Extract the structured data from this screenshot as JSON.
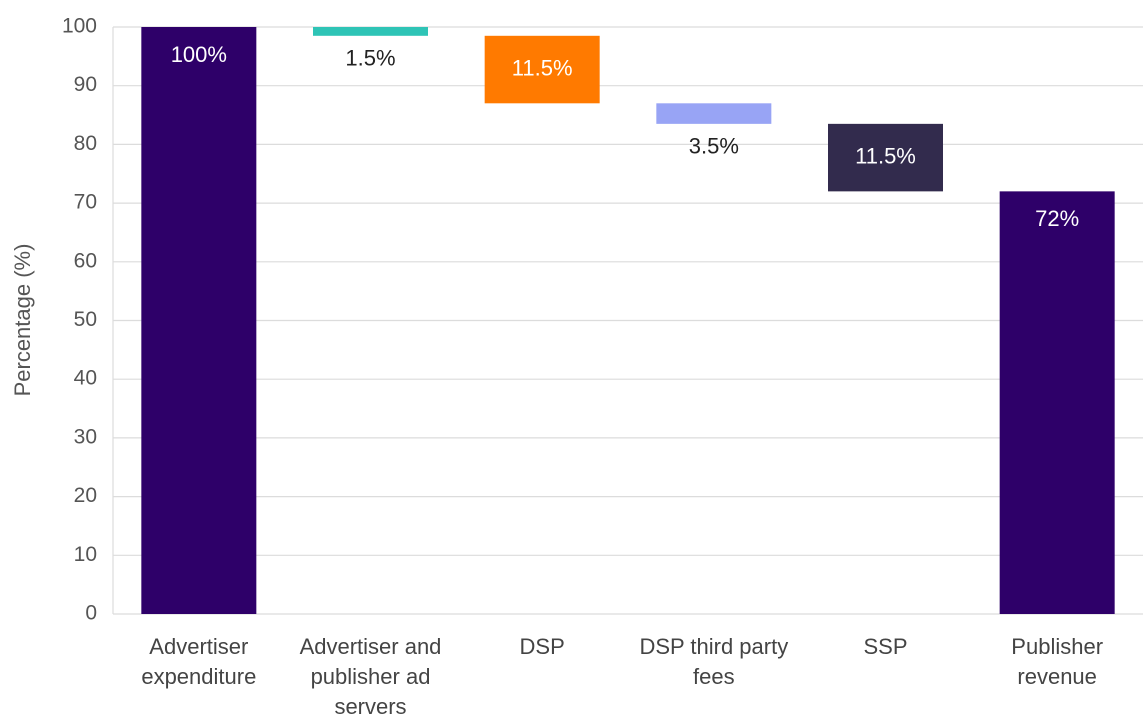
{
  "chart_data": {
    "type": "waterfall",
    "y_label": "Percentage  (%)",
    "categories": [
      "Advertiser expenditure",
      "Advertiser and publisher ad servers",
      "DSP",
      "DSP third party fees",
      "SSP",
      "Publisher revenue"
    ],
    "values": [
      100,
      1.5,
      11.5,
      3.5,
      11.5,
      72
    ],
    "value_labels": [
      "100%",
      "1.5%",
      "11.5%",
      "3.5%",
      "11.5%",
      "72%"
    ],
    "measure": [
      "total",
      "decrease",
      "decrease",
      "decrease",
      "decrease",
      "total"
    ],
    "colors": [
      "#2e0069",
      "#2ec4b6",
      "#ff7a00",
      "#98a4f5",
      "#322b4d",
      "#2e0069"
    ],
    "ylim": [
      0,
      100
    ],
    "yticks": [
      0,
      10,
      20,
      30,
      40,
      50,
      60,
      70,
      80,
      90,
      100
    ],
    "grid": true
  }
}
